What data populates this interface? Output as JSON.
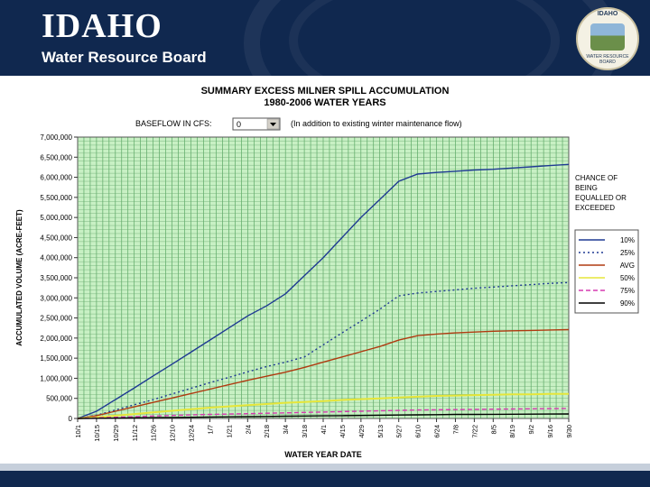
{
  "header": {
    "brand_name": "IDAHO",
    "brand_sub": "Water Resource Board",
    "seal_top": "IDAHO",
    "seal_bottom": "WATER RESOURCE BOARD"
  },
  "chart_data": {
    "type": "line",
    "title": "SUMMARY EXCESS MILNER SPILL ACCUMULATION",
    "subtitle": "1980-2006 WATER YEARS",
    "baseflow_label": "BASEFLOW IN CFS:",
    "baseflow_value": "0",
    "baseflow_note": "(In addition to existing winter maintenance flow)",
    "xlabel": "WATER YEAR DATE",
    "ylabel": "ACCUMULATED VOLUME (ACRE-FEET)",
    "ylim": [
      0,
      7000000
    ],
    "y_ticks": [
      "0",
      "500,000",
      "1,000,000",
      "1,500,000",
      "2,000,000",
      "2,500,000",
      "3,000,000",
      "3,500,000",
      "4,000,000",
      "4,500,000",
      "5,000,000",
      "5,500,000",
      "6,000,000",
      "6,500,000",
      "7,000,000"
    ],
    "categories": [
      "10/1",
      "10/15",
      "10/29",
      "11/12",
      "11/26",
      "12/10",
      "12/24",
      "1/7",
      "1/21",
      "2/4",
      "2/18",
      "3/4",
      "3/18",
      "4/1",
      "4/15",
      "4/29",
      "5/13",
      "5/27",
      "6/10",
      "6/24",
      "7/8",
      "7/22",
      "8/5",
      "8/19",
      "9/2",
      "9/16",
      "9/30"
    ],
    "legend_title": [
      "CHANCE OF",
      "BEING",
      "EQUALLED OR",
      "EXCEEDED"
    ],
    "series": [
      {
        "name": "10%",
        "color": "#1f3a93",
        "dash": "solid",
        "values": [
          0,
          180000,
          470000,
          760000,
          1060000,
          1350000,
          1650000,
          1950000,
          2250000,
          2550000,
          2800000,
          3100000,
          3550000,
          4000000,
          4500000,
          5000000,
          5450000,
          5900000,
          6080000,
          6120000,
          6150000,
          6180000,
          6200000,
          6230000,
          6260000,
          6290000,
          6320000
        ]
      },
      {
        "name": "25%",
        "color": "#1f3a93",
        "dash": "dotted",
        "values": [
          0,
          80000,
          210000,
          340000,
          470000,
          610000,
          750000,
          890000,
          1020000,
          1160000,
          1290000,
          1400000,
          1530000,
          1830000,
          2130000,
          2420000,
          2720000,
          3050000,
          3120000,
          3160000,
          3200000,
          3240000,
          3270000,
          3300000,
          3330000,
          3360000,
          3380000
        ]
      },
      {
        "name": "AVG",
        "color": "#b03a10",
        "dash": "solid",
        "values": [
          0,
          70000,
          180000,
          290000,
          400000,
          510000,
          620000,
          730000,
          840000,
          950000,
          1050000,
          1150000,
          1270000,
          1400000,
          1530000,
          1660000,
          1790000,
          1950000,
          2060000,
          2100000,
          2130000,
          2150000,
          2170000,
          2180000,
          2190000,
          2200000,
          2210000
        ]
      },
      {
        "name": "50%",
        "color": "#e6e63a",
        "dash": "solid",
        "values": [
          0,
          30000,
          70000,
          110000,
          150000,
          190000,
          230000,
          270000,
          300000,
          330000,
          360000,
          390000,
          410000,
          430000,
          460000,
          480000,
          500000,
          520000,
          540000,
          560000,
          570000,
          580000,
          590000,
          600000,
          600000,
          610000,
          610000
        ]
      },
      {
        "name": "75%",
        "color": "#d63ab0",
        "dash": "dashed",
        "values": [
          0,
          15000,
          30000,
          45000,
          60000,
          75000,
          90000,
          100000,
          110000,
          120000,
          130000,
          140000,
          150000,
          160000,
          170000,
          180000,
          190000,
          200000,
          210000,
          215000,
          220000,
          225000,
          230000,
          235000,
          240000,
          245000,
          250000
        ]
      },
      {
        "name": "90%",
        "color": "#000000",
        "dash": "solid",
        "values": [
          0,
          5000,
          10000,
          15000,
          20000,
          25000,
          30000,
          35000,
          40000,
          45000,
          50000,
          55000,
          60000,
          65000,
          70000,
          75000,
          80000,
          85000,
          90000,
          95000,
          100000,
          102000,
          104000,
          106000,
          108000,
          110000,
          112000
        ]
      }
    ]
  }
}
